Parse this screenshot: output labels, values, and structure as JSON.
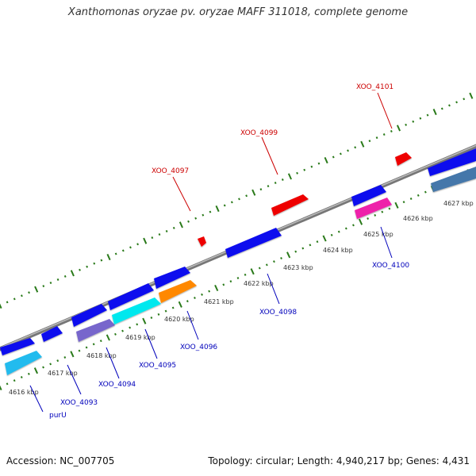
{
  "title": "Xanthomonas oryzae pv. oryzae MAFF 311018, complete genome",
  "footer": {
    "accession": "Accession: NC_007705",
    "summary": "Topology: circular; Length: 4,940,217 bp; Genes: 4,431"
  },
  "colors": {
    "backbone": "#888888",
    "tick": "#2a7a1a",
    "forward_label": "#cc0000",
    "reverse_label": "#0000bb"
  },
  "kbp_labels": [
    "4616 kbp",
    "4617 kbp",
    "4618 kbp",
    "4619 kbp",
    "4620 kbp",
    "4621 kbp",
    "4622 kbp",
    "4623 kbp",
    "4624 kbp",
    "4625 kbp",
    "4626 kbp",
    "4627 kbp"
  ],
  "forward_gene_labels": [
    "XOO_4097",
    "XOO_4099",
    "XOO_4101"
  ],
  "reverse_gene_labels": [
    "purU",
    "XOO_4093",
    "XOO_4094",
    "XOO_4095",
    "XOO_4096",
    "XOO_4098",
    "XOO_4100"
  ],
  "feature_colors": {
    "blue": "#1010ee",
    "red": "#ee0000",
    "cyan": "#00e8ee",
    "light_blue": "#22bbee",
    "purple": "#7766cc",
    "orange": "#ff8800",
    "magenta": "#ee22aa",
    "steel": "#4477aa"
  }
}
